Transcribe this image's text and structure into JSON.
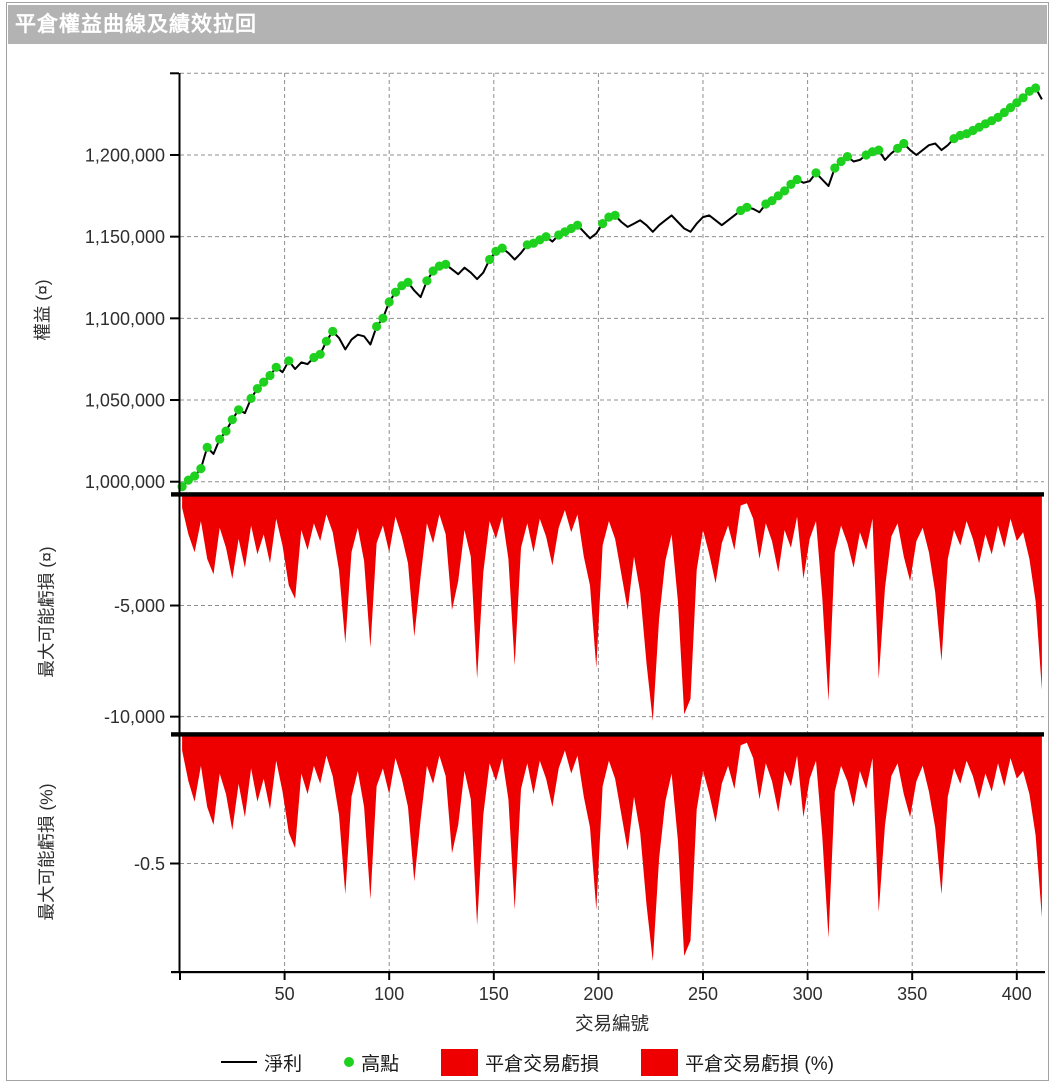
{
  "window": {
    "title": "平倉權益曲線及績效拉回"
  },
  "colors": {
    "titlebar_bg": "#b3b3b3",
    "titlebar_text": "#ffffff",
    "equity_line": "#000000",
    "high_dot": "#1fd11f",
    "drawdown_fill": "#ee0000",
    "grid": "#8f8f8f",
    "axis": "#000000"
  },
  "xaxis": {
    "label": "交易編號",
    "ticks": [
      50,
      100,
      150,
      200,
      250,
      300,
      350,
      400
    ],
    "xlim": [
      0,
      413
    ]
  },
  "legend": {
    "items": [
      {
        "swatch": "line",
        "label": "淨利"
      },
      {
        "swatch": "dot",
        "label": "高點"
      },
      {
        "swatch": "rect",
        "label": "平倉交易虧損"
      },
      {
        "swatch": "rect",
        "label": "平倉交易虧損 (%)"
      }
    ]
  },
  "chart_data": [
    {
      "type": "line",
      "name": "equity_curve",
      "series_label": "淨利",
      "marker_label": "高點",
      "marker_rule": "green dot where equity makes a new high",
      "ylabel": "權益 (¤)",
      "ylim": [
        995000,
        1251000
      ],
      "yticks": [
        1000000,
        1050000,
        1100000,
        1150000,
        1200000,
        1250000
      ],
      "ytick_labels": [
        "1,000,000",
        "1,050,000",
        "1,100,000",
        "1,150,000",
        "1,200,000",
        ""
      ],
      "x_start": 1,
      "x_step": 3,
      "values": [
        997000,
        1001000,
        1003500,
        1008000,
        1021000,
        1017000,
        1026000,
        1031000,
        1038000,
        1044000,
        1042000,
        1051000,
        1057000,
        1061000,
        1065000,
        1070000,
        1067000,
        1074000,
        1069000,
        1073000,
        1072000,
        1076000,
        1078000,
        1086000,
        1092000,
        1088000,
        1081000,
        1087000,
        1090000,
        1089000,
        1084000,
        1095000,
        1100000,
        1110000,
        1116000,
        1120000,
        1122000,
        1117000,
        1113000,
        1123000,
        1129000,
        1132000,
        1133000,
        1130000,
        1127000,
        1131000,
        1128000,
        1124000,
        1128000,
        1136000,
        1141000,
        1143000,
        1140000,
        1136000,
        1140000,
        1145000,
        1146000,
        1148000,
        1150000,
        1147000,
        1151000,
        1153000,
        1155000,
        1157000,
        1153000,
        1149000,
        1152000,
        1158000,
        1162000,
        1163000,
        1159000,
        1156000,
        1158000,
        1160000,
        1157000,
        1153000,
        1157000,
        1160000,
        1163000,
        1159000,
        1155000,
        1153000,
        1158000,
        1162000,
        1163000,
        1160000,
        1157000,
        1160000,
        1163000,
        1166000,
        1168000,
        1167000,
        1165000,
        1170000,
        1172000,
        1175000,
        1178000,
        1182000,
        1185000,
        1183000,
        1184000,
        1189000,
        1185000,
        1181000,
        1192000,
        1196000,
        1199000,
        1196000,
        1197000,
        1200000,
        1202000,
        1203000,
        1197000,
        1201000,
        1204000,
        1207000,
        1203000,
        1200000,
        1203000,
        1206000,
        1207000,
        1203000,
        1206000,
        1210000,
        1212000,
        1213000,
        1215000,
        1217000,
        1219000,
        1221000,
        1223000,
        1226000,
        1229000,
        1232000,
        1235000,
        1239000,
        1241000,
        1234000
      ]
    },
    {
      "type": "area",
      "name": "drawdown_currency",
      "series_label": "平倉交易虧損",
      "ylabel": "最大可能虧損 (¤)",
      "ylim": [
        0,
        -10600
      ],
      "yticks": [
        -5000,
        -10000
      ],
      "ytick_labels": [
        "-5,000",
        "-10,000"
      ],
      "x_start": 1,
      "x_step": 3,
      "values": [
        -600,
        -1800,
        -2600,
        -1200,
        -2900,
        -3600,
        -1500,
        -2400,
        -3800,
        -2000,
        -3300,
        -1400,
        -2700,
        -1800,
        -3100,
        -1100,
        -2300,
        -4100,
        -4700,
        -1600,
        -2500,
        -1300,
        -2100,
        -900,
        -1700,
        -3400,
        -6700,
        -2600,
        -1500,
        -3000,
        -6900,
        -2200,
        -1400,
        -2600,
        -1000,
        -1900,
        -3100,
        -6400,
        -3700,
        -1300,
        -2200,
        -900,
        -1800,
        -5200,
        -3900,
        -1600,
        -2800,
        -8300,
        -3500,
        -1200,
        -2000,
        -1000,
        -2900,
        -7700,
        -2400,
        -1300,
        -2600,
        -1100,
        -1900,
        -3200,
        -1500,
        -700,
        -1700,
        -900,
        -2800,
        -4100,
        -7800,
        -2300,
        -1200,
        -2000,
        -3600,
        -5200,
        -2800,
        -4400,
        -7600,
        -10200,
        -5600,
        -3000,
        -1800,
        -4800,
        -9900,
        -9200,
        -3400,
        -1600,
        -2700,
        -4000,
        -2200,
        -1400,
        -2500,
        -500,
        -400,
        -1100,
        -2900,
        -1300,
        -2100,
        -3500,
        -1600,
        -2400,
        -1000,
        -3800,
        -2000,
        -1200,
        -4600,
        -9300,
        -2600,
        -1400,
        -2200,
        -3300,
        -1700,
        -2500,
        -1100,
        -8300,
        -4200,
        -1900,
        -1300,
        -2800,
        -3900,
        -2100,
        -1500,
        -2600,
        -4400,
        -7500,
        -2900,
        -1600,
        -2300,
        -1200,
        -2000,
        -3100,
        -1800,
        -2700,
        -1400,
        -2400,
        -1100,
        -2100,
        -1700,
        -2900,
        -4800,
        -8800
      ]
    },
    {
      "type": "area",
      "name": "drawdown_percent",
      "series_label": "平倉交易虧損 (%)",
      "ylabel": "最大可能虧損 (%)",
      "ylim": [
        0,
        -0.92
      ],
      "yticks": [
        -0.5
      ],
      "ytick_labels": [
        "-0.5"
      ],
      "x_start": 1,
      "x_step": 3,
      "values": [
        -0.06,
        -0.18,
        -0.26,
        -0.12,
        -0.28,
        -0.35,
        -0.15,
        -0.23,
        -0.37,
        -0.19,
        -0.32,
        -0.13,
        -0.26,
        -0.17,
        -0.29,
        -0.1,
        -0.22,
        -0.38,
        -0.44,
        -0.15,
        -0.23,
        -0.12,
        -0.19,
        -0.08,
        -0.16,
        -0.31,
        -0.62,
        -0.24,
        -0.14,
        -0.28,
        -0.64,
        -0.2,
        -0.13,
        -0.23,
        -0.09,
        -0.17,
        -0.28,
        -0.57,
        -0.33,
        -0.12,
        -0.19,
        -0.08,
        -0.16,
        -0.46,
        -0.35,
        -0.14,
        -0.25,
        -0.74,
        -0.31,
        -0.11,
        -0.18,
        -0.09,
        -0.25,
        -0.68,
        -0.21,
        -0.11,
        -0.23,
        -0.1,
        -0.17,
        -0.28,
        -0.13,
        -0.06,
        -0.15,
        -0.08,
        -0.24,
        -0.36,
        -0.68,
        -0.2,
        -0.1,
        -0.17,
        -0.31,
        -0.45,
        -0.24,
        -0.38,
        -0.66,
        -0.88,
        -0.48,
        -0.26,
        -0.15,
        -0.41,
        -0.86,
        -0.8,
        -0.29,
        -0.14,
        -0.23,
        -0.34,
        -0.19,
        -0.12,
        -0.21,
        -0.04,
        -0.03,
        -0.09,
        -0.25,
        -0.11,
        -0.18,
        -0.3,
        -0.14,
        -0.2,
        -0.08,
        -0.32,
        -0.17,
        -0.1,
        -0.39,
        -0.79,
        -0.22,
        -0.12,
        -0.18,
        -0.28,
        -0.14,
        -0.21,
        -0.09,
        -0.69,
        -0.35,
        -0.16,
        -0.11,
        -0.23,
        -0.32,
        -0.18,
        -0.12,
        -0.22,
        -0.36,
        -0.62,
        -0.24,
        -0.13,
        -0.19,
        -0.1,
        -0.16,
        -0.25,
        -0.15,
        -0.22,
        -0.11,
        -0.2,
        -0.09,
        -0.17,
        -0.14,
        -0.23,
        -0.39,
        -0.71
      ]
    }
  ]
}
